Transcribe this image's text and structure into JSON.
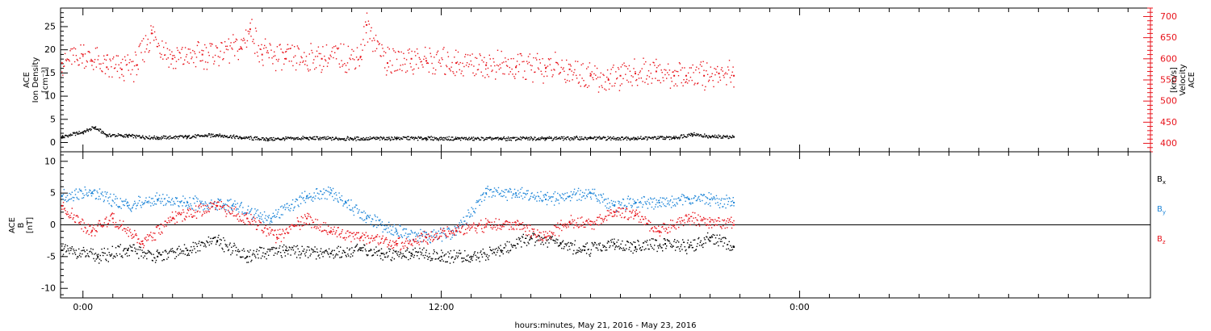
{
  "figure": {
    "xlabel": "hours:minutes, May 21, 2016 - May 23, 2016",
    "x_ticks": [
      {
        "label": "0:00",
        "hour": 0
      },
      {
        "label": "12:00",
        "hour": 12
      },
      {
        "label": "0:00",
        "hour": 24
      }
    ],
    "x_range_hours": [
      -0.75,
      35.75
    ],
    "data_end_hour": 21.8
  },
  "colors": {
    "black": "#000000",
    "red": "#e8141c",
    "blue": "#1f86d8"
  },
  "chart_data": [
    {
      "type": "scatter",
      "title": "",
      "left_axis": {
        "label_lines": [
          "ACE",
          "Ion Density",
          "[cm⁻³]"
        ],
        "ylim": [
          -2,
          29
        ],
        "ticks": [
          0,
          5,
          10,
          15,
          20,
          25
        ],
        "minor_step": 1,
        "color": "#000000"
      },
      "right_axis": {
        "label_lines": [
          "ACE",
          "Velocity",
          "[km/s]"
        ],
        "ylim": [
          380,
          720
        ],
        "ticks": [
          400,
          450,
          500,
          550,
          600,
          650,
          700
        ],
        "minor_step": 10,
        "color": "#e8141c"
      },
      "series": [
        {
          "key": "density",
          "axis": "left",
          "color": "#000000",
          "x_hours": [
            -0.7,
            0,
            0.4,
            0.8,
            1.5,
            2.5,
            3.5,
            4.5,
            5.3,
            6.2,
            7.5,
            9,
            10.5,
            11.5,
            12.5,
            14,
            15.5,
            17,
            18.5,
            19.8,
            20.4,
            21,
            21.8
          ],
          "values": [
            1.2,
            2.2,
            3.2,
            1.6,
            1.4,
            1.0,
            1.2,
            1.6,
            1.0,
            0.7,
            0.9,
            0.8,
            0.9,
            0.9,
            0.8,
            0.8,
            0.9,
            0.9,
            0.9,
            1.0,
            1.8,
            1.2,
            1.2
          ]
        },
        {
          "key": "velocity",
          "axis": "right",
          "color": "#e8141c",
          "x_hours": [
            -0.7,
            0,
            0.3,
            0.8,
            1.3,
            1.8,
            2.3,
            3.0,
            4.0,
            5.3,
            5.6,
            6.0,
            6.8,
            8.0,
            9.3,
            9.5,
            10.2,
            11.0,
            11.5,
            12.5,
            13.5,
            14.5,
            15.5,
            16.3,
            17.0,
            17.6,
            18.0,
            18.5,
            19.2,
            19.8,
            20.2,
            20.8,
            21.3,
            21.8
          ],
          "values": [
            590,
            610,
            595,
            580,
            575,
            585,
            660,
            600,
            610,
            625,
            670,
            610,
            600,
            600,
            605,
            680,
            590,
            600,
            595,
            590,
            585,
            580,
            578,
            575,
            560,
            550,
            560,
            565,
            570,
            560,
            560,
            560,
            565,
            560
          ]
        }
      ]
    },
    {
      "type": "scatter",
      "title": "",
      "left_axis": {
        "label_lines": [
          "ACE",
          "B",
          "[nT]"
        ],
        "ylim": [
          -11.5,
          11.5
        ],
        "ticks": [
          -10,
          -5,
          0,
          5,
          10
        ],
        "minor_step": 1,
        "color": "#000000",
        "zero_line": true
      },
      "legend_location": "right",
      "series": [
        {
          "key": "bx",
          "name": "B",
          "subscript": "x",
          "axis": "left",
          "color": "#000000",
          "x_hours": [
            -0.7,
            0.5,
            1.5,
            2.5,
            3.5,
            4.5,
            5.5,
            6.8,
            8.3,
            9.3,
            10.0,
            11.0,
            12.0,
            13.0,
            14.0,
            15.0,
            16.0,
            16.8,
            17.8,
            18.5,
            19.5,
            20.3,
            21.0,
            21.8
          ],
          "values": [
            -4.0,
            -5.0,
            -4.0,
            -5.0,
            -4.0,
            -2.5,
            -5.0,
            -4.0,
            -4.5,
            -4.0,
            -4.5,
            -4.5,
            -5.0,
            -5.0,
            -4.0,
            -2.0,
            -3.0,
            -4.0,
            -3.0,
            -3.5,
            -3.0,
            -3.5,
            -2.0,
            -3.5
          ]
        },
        {
          "key": "by",
          "name": "B",
          "subscript": "y",
          "axis": "left",
          "color": "#1f86d8",
          "x_hours": [
            -0.7,
            0.3,
            1.5,
            2.5,
            3.5,
            5.0,
            6.3,
            7.5,
            8.3,
            8.8,
            9.5,
            10.5,
            11.5,
            12.5,
            13.5,
            14.5,
            15.5,
            16.3,
            17.0,
            17.8,
            18.5,
            19.3,
            20.3,
            21.0,
            21.8
          ],
          "values": [
            4.5,
            5.0,
            3.0,
            4.0,
            3.5,
            3.0,
            1.0,
            4.5,
            5.0,
            3.5,
            1.0,
            -1.0,
            -2.0,
            -1.0,
            5.0,
            5.0,
            4.0,
            4.5,
            5.0,
            3.0,
            3.5,
            3.5,
            4.0,
            4.0,
            3.5
          ]
        },
        {
          "key": "bz",
          "name": "B",
          "subscript": "z",
          "axis": "left",
          "color": "#e8141c",
          "x_hours": [
            -0.7,
            0.3,
            1.0,
            2.0,
            3.0,
            4.5,
            5.5,
            6.5,
            7.5,
            8.3,
            9.3,
            10.5,
            11.5,
            12.5,
            13.5,
            14.5,
            15.5,
            16.3,
            17.0,
            17.8,
            18.5,
            19.3,
            20.3,
            21.0,
            21.8
          ],
          "values": [
            3.0,
            -1.0,
            1.0,
            -3.0,
            1.0,
            3.0,
            1.0,
            -2.0,
            1.0,
            -1.0,
            -2.0,
            -3.0,
            -2.0,
            -1.0,
            0.0,
            0.0,
            -2.0,
            0.5,
            0.0,
            2.0,
            1.5,
            -1.0,
            1.0,
            0.5,
            0.0
          ]
        }
      ]
    }
  ]
}
